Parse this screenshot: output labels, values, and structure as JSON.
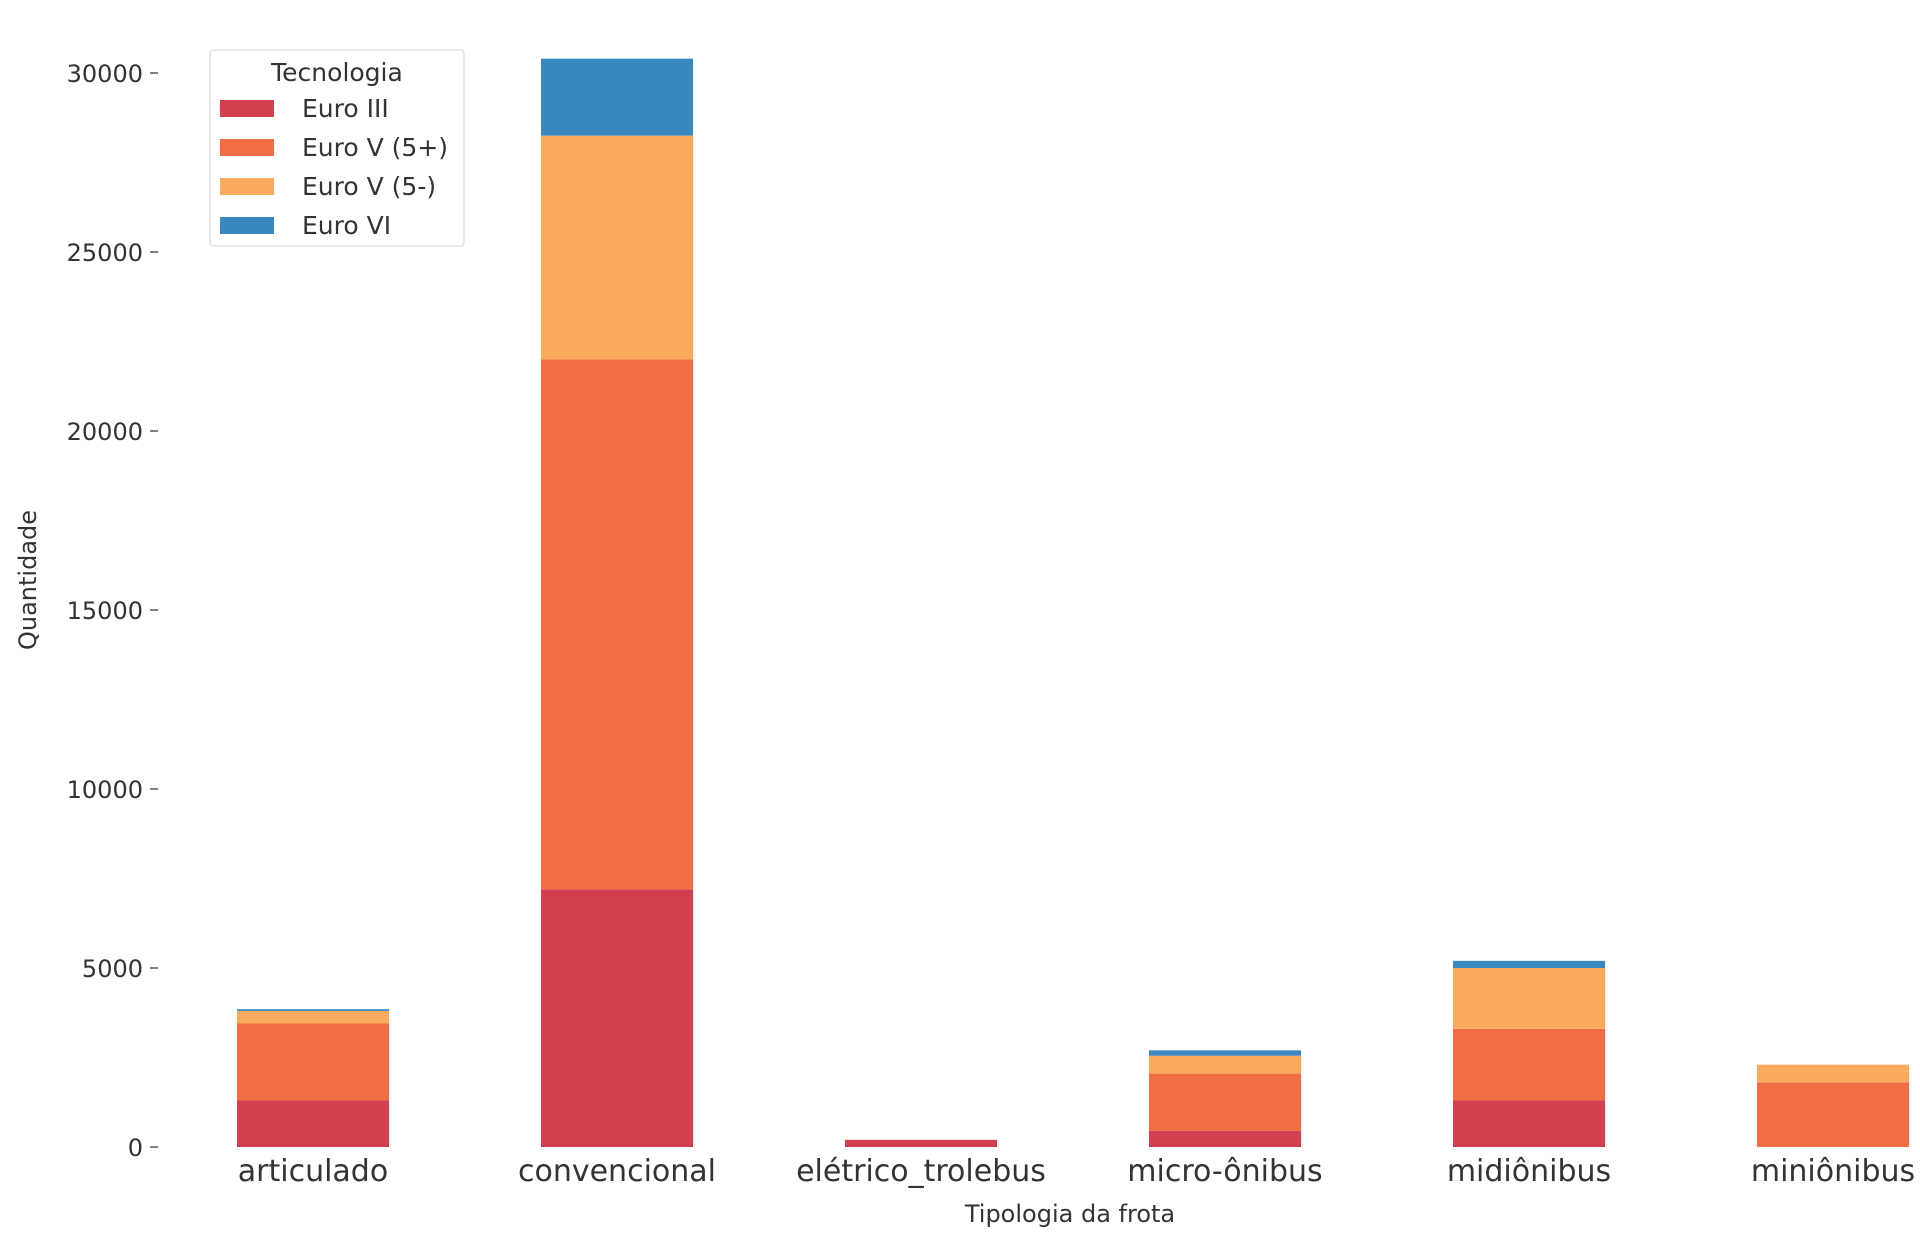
{
  "chart_data": {
    "type": "bar",
    "stacked": true,
    "categories": [
      "articulado",
      "convencional",
      "elétrico_trolebus",
      "micro-ônibus",
      "midiônibus",
      "miniônibus"
    ],
    "series": [
      {
        "name": "Euro III",
        "color": "#d33f4f",
        "values": [
          1300,
          7200,
          200,
          450,
          1300,
          0
        ]
      },
      {
        "name": "Euro V (5+)",
        "color": "#f26d44",
        "values": [
          2150,
          14800,
          0,
          1600,
          2000,
          1800
        ]
      },
      {
        "name": "Euro V (5-)",
        "color": "#fbab5f",
        "values": [
          350,
          6250,
          0,
          500,
          1700,
          500
        ]
      },
      {
        "name": "Euro VI",
        "color": "#3a88c0",
        "values": [
          50,
          2150,
          0,
          150,
          200,
          0
        ]
      }
    ],
    "xlabel": "Tipologia da frota",
    "ylabel": "Quantidade",
    "ylim": [
      0,
      30400
    ],
    "yticks": [
      0,
      5000,
      10000,
      15000,
      20000,
      25000,
      30000
    ],
    "legend": {
      "title": "Tecnologia",
      "placement": "top-left"
    },
    "grid": false
  }
}
